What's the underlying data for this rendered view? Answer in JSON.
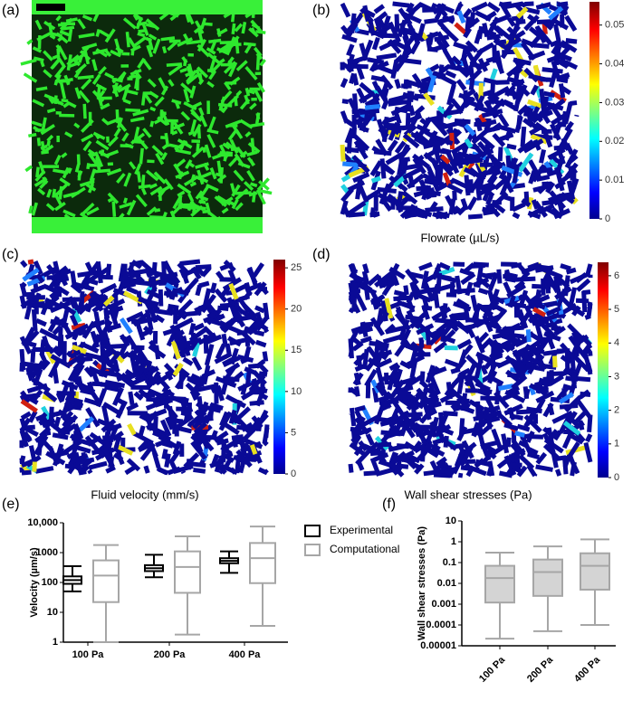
{
  "panel_labels": [
    "(a)",
    "(b)",
    "(c)",
    "(d)",
    "(e)",
    "(f)"
  ],
  "chart_data": [
    {
      "type": "colorbar",
      "label": "Flowrate (µL/s)",
      "ylim": [
        0,
        0.056
      ],
      "yticks": [
        0,
        0.01,
        0.02,
        0.03,
        0.04,
        0.05
      ]
    },
    {
      "type": "colorbar",
      "label": "Fluid velocity (mm/s)",
      "ylim": [
        0,
        26
      ],
      "yticks": [
        0,
        5,
        10,
        15,
        20,
        25
      ]
    },
    {
      "type": "colorbar",
      "label": "Wall shear stresses (Pa)",
      "ylim": [
        0,
        6.4
      ],
      "yticks": [
        0,
        1,
        2,
        3,
        4,
        5,
        6
      ]
    },
    {
      "type": "box",
      "y_label": "Velocity (µm/s)",
      "log_y": true,
      "ylim": [
        1,
        10000
      ],
      "yticks": [
        1,
        10,
        100,
        1000,
        {
          "value": 10000,
          "label": "10,000"
        }
      ],
      "categories": [
        "100 Pa",
        "200 Pa",
        "400 Pa"
      ],
      "legend": "right",
      "series": [
        {
          "name": "Experimental",
          "color": "#000000",
          "low": [
            50,
            150,
            210
          ],
          "q1": [
            90,
            240,
            440
          ],
          "median": [
            120,
            300,
            530
          ],
          "q3": [
            160,
            380,
            650
          ],
          "high": [
            350,
            850,
            1100
          ]
        },
        {
          "name": "Computational",
          "color": "#a6a6a6",
          "low": [
            1,
            1.8,
            3.5
          ],
          "q1": [
            22,
            45,
            95
          ],
          "median": [
            170,
            330,
            650
          ],
          "q3": [
            550,
            1100,
            2100
          ],
          "high": [
            1800,
            3500,
            7500
          ]
        }
      ]
    },
    {
      "type": "box",
      "y_label": "Wall shear stresses (Pa)",
      "log_y": true,
      "ylim": [
        1e-05,
        10
      ],
      "yticks": [
        {
          "value": 1e-05,
          "label": "0.00001"
        },
        0.0001,
        0.001,
        0.01,
        0.1,
        1,
        10
      ],
      "categories": [
        "100 Pa",
        "200 Pa",
        "400 Pa"
      ],
      "series": [
        {
          "color": "#a6a6a6",
          "fill": "#d4d4d4",
          "low": [
            2.2e-05,
            5e-05,
            0.0001
          ],
          "q1": [
            0.0012,
            0.0025,
            0.005
          ],
          "median": [
            0.018,
            0.035,
            0.07
          ],
          "q3": [
            0.07,
            0.14,
            0.28
          ],
          "high": [
            0.3,
            0.6,
            1.3
          ]
        }
      ]
    }
  ]
}
